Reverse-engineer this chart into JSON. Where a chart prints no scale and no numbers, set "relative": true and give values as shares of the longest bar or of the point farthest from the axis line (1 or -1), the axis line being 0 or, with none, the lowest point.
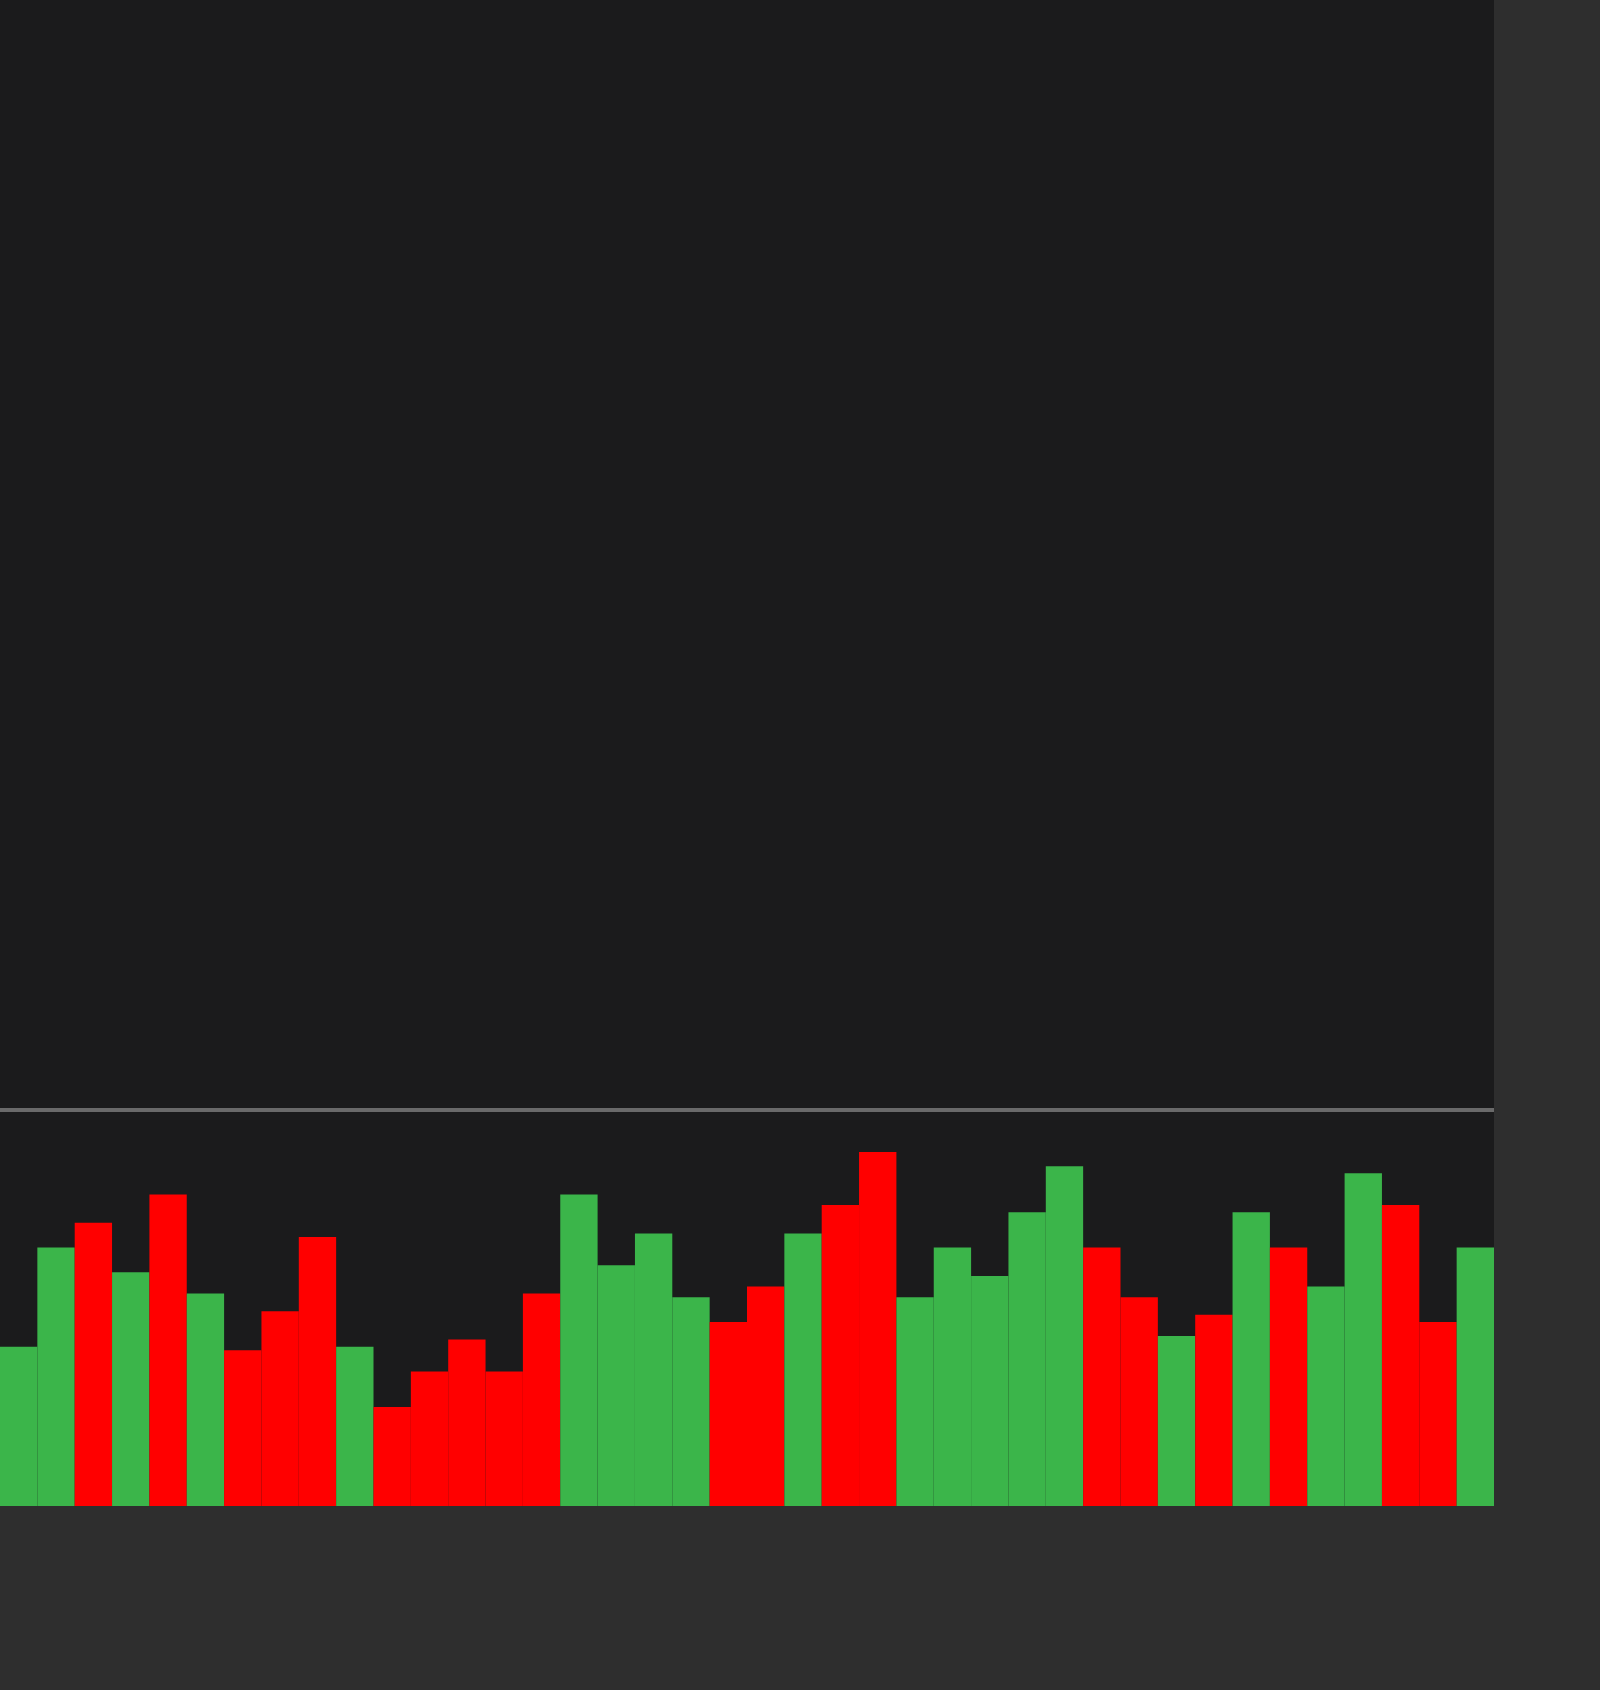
{
  "chart_data": {
    "type": "bar",
    "relative": true,
    "categories": [
      null,
      null,
      null,
      null,
      null,
      null,
      null,
      null,
      null,
      null,
      null,
      null,
      null,
      null,
      null,
      null,
      null,
      null,
      null,
      null,
      null,
      null,
      null,
      null,
      null,
      null,
      null,
      null,
      null,
      null,
      null,
      null,
      null,
      null,
      null,
      null,
      null,
      null,
      null,
      null
    ],
    "values": [
      0.45,
      0.73,
      0.8,
      0.66,
      0.88,
      0.6,
      0.44,
      0.55,
      0.76,
      0.45,
      0.28,
      0.38,
      0.47,
      0.38,
      0.6,
      0.88,
      0.68,
      0.77,
      0.59,
      0.52,
      0.62,
      0.77,
      0.85,
      1,
      0.59,
      0.73,
      0.65,
      0.83,
      0.96,
      0.73,
      0.59,
      0.48,
      0.54,
      0.83,
      0.73,
      0.62,
      0.94,
      0.85,
      0.52,
      0.73
    ],
    "colors": [
      "#3bb54a",
      "#3bb54a",
      "#ff0000",
      "#3bb54a",
      "#ff0000",
      "#3bb54a",
      "#ff0000",
      "#ff0000",
      "#ff0000",
      "#3bb54a",
      "#ff0000",
      "#ff0000",
      "#ff0000",
      "#ff0000",
      "#ff0000",
      "#3bb54a",
      "#3bb54a",
      "#3bb54a",
      "#3bb54a",
      "#ff0000",
      "#ff0000",
      "#3bb54a",
      "#ff0000",
      "#ff0000",
      "#3bb54a",
      "#3bb54a",
      "#3bb54a",
      "#3bb54a",
      "#3bb54a",
      "#ff0000",
      "#ff0000",
      "#3bb54a",
      "#ff0000",
      "#3bb54a",
      "#ff0000",
      "#3bb54a",
      "#3bb54a",
      "#ff0000",
      "#ff0000",
      "#3bb54a"
    ]
  }
}
